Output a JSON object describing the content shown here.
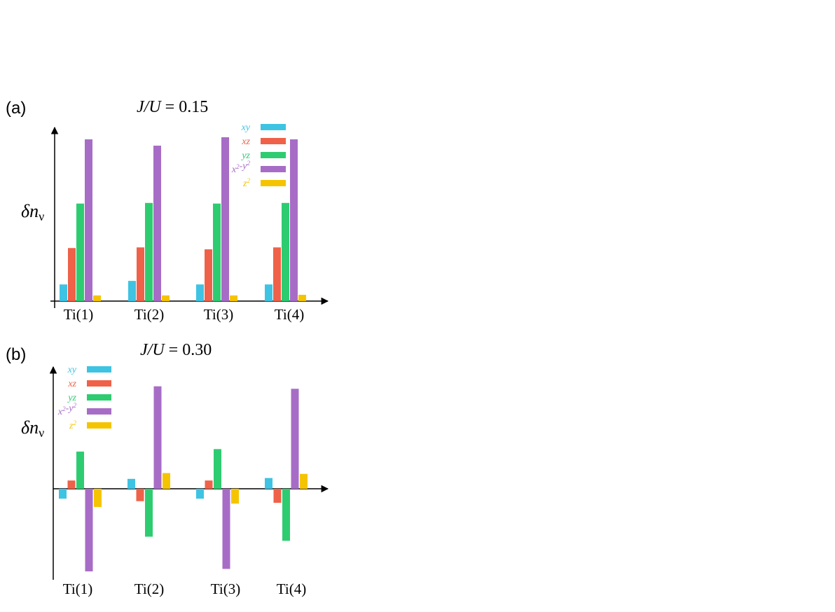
{
  "chart_data": [
    {
      "type": "bar",
      "panel_label": "(a)",
      "title": "J/U = 0.15",
      "title_parts": {
        "ratio": "J/U",
        "value": "= 0.15"
      },
      "ylabel": "δn",
      "ylabel_sub": "ν",
      "categories": [
        "Ti(1)",
        "Ti(2)",
        "Ti(3)",
        "Ti(4)"
      ],
      "ylim": [
        0,
        1.04
      ],
      "grid": false,
      "legend_position": "top-right",
      "series": [
        {
          "name": "xy",
          "name_html": "xy",
          "color": "#3ec3e3",
          "values": [
            0.103,
            0.125,
            0.103,
            0.103
          ]
        },
        {
          "name": "xz",
          "name_html": "xz",
          "color": "#ef6148",
          "values": [
            0.328,
            0.332,
            0.32,
            0.332
          ]
        },
        {
          "name": "yz",
          "name_html": "yz",
          "color": "#2ecc71",
          "values": [
            0.603,
            0.607,
            0.603,
            0.607
          ]
        },
        {
          "name": "x2-y2",
          "name_html": "x<sup>2</sup>-y<sup>2</sup>",
          "color": "#a76dc6",
          "values": [
            1.0,
            0.961,
            1.013,
            1.0
          ]
        },
        {
          "name": "z2",
          "name_html": "z<sup>2</sup>",
          "color": "#f5c400",
          "values": [
            0.035,
            0.035,
            0.035,
            0.039
          ]
        }
      ]
    },
    {
      "type": "bar",
      "panel_label": "(b)",
      "title": "J/U = 0.30",
      "title_parts": {
        "ratio": "J/U",
        "value": "= 0.30"
      },
      "ylabel": "δn",
      "ylabel_sub": "ν",
      "categories": [
        "Ti(1)",
        "Ti(2)",
        "Ti(3)",
        "Ti(4)"
      ],
      "ylim": [
        -1.0,
        1.2
      ],
      "grid": false,
      "legend_position": "top-left",
      "series": [
        {
          "name": "xy",
          "name_html": "xy",
          "color": "#3ec3e3",
          "values": [
            -0.12,
            0.12,
            -0.12,
            0.13
          ]
        },
        {
          "name": "xz",
          "name_html": "xz",
          "color": "#ef6148",
          "values": [
            0.1,
            -0.15,
            0.1,
            -0.17
          ]
        },
        {
          "name": "yz",
          "name_html": "yz",
          "color": "#2ecc71",
          "values": [
            0.45,
            -0.58,
            0.48,
            -0.63
          ]
        },
        {
          "name": "x2-y2",
          "name_html": "x<sup>2</sup>-y<sup>2</sup>",
          "color": "#a76dc6",
          "values": [
            -1.0,
            1.24,
            -0.97,
            1.21
          ]
        },
        {
          "name": "z2",
          "name_html": "z<sup>2</sup>",
          "color": "#f5c400",
          "values": [
            -0.22,
            0.19,
            -0.18,
            0.18
          ]
        }
      ]
    }
  ]
}
